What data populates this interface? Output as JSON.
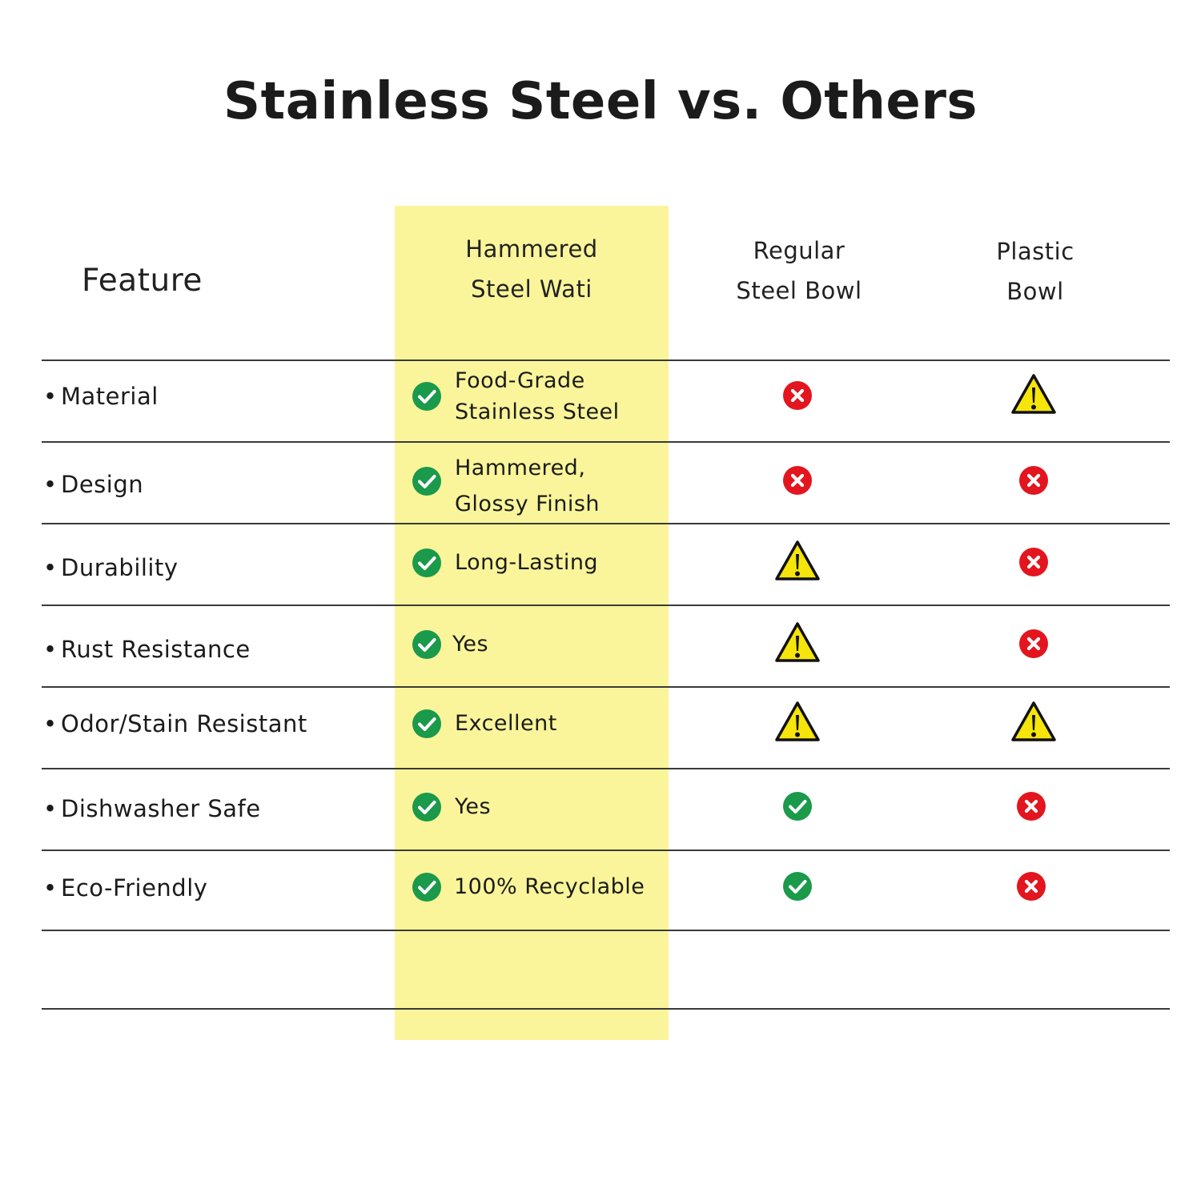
{
  "title": "Stainless Steel vs. Others",
  "columns": {
    "feature": "Feature",
    "col1": [
      "Hammered",
      "Steel Wati"
    ],
    "col2": [
      "Regular",
      "Steel Bowl"
    ],
    "col3": [
      "Plastic",
      "Bowl"
    ]
  },
  "rows": [
    {
      "feature": "Material",
      "wati": [
        "Food-Grade",
        "Stainless Steel"
      ],
      "wati_icon": "check-icon",
      "regular_icon": "cross-icon",
      "plastic_icon": "warning-icon"
    },
    {
      "feature": "Design",
      "wati": [
        "Hammered,",
        "Glossy Finish"
      ],
      "wati_icon": "check-icon",
      "regular_icon": "cross-icon",
      "plastic_icon": "cross-icon"
    },
    {
      "feature": "Durability",
      "wati": [
        "Long-Lasting"
      ],
      "wati_icon": "check-icon",
      "regular_icon": "warning-icon",
      "plastic_icon": "cross-icon"
    },
    {
      "feature": "Rust Resistance",
      "wati": [
        "Yes"
      ],
      "wati_icon": "check-icon",
      "regular_icon": "warning-icon",
      "plastic_icon": "cross-icon"
    },
    {
      "feature": "Odor/Stain Resistant",
      "wati": [
        "Excellent"
      ],
      "wati_icon": "check-icon",
      "regular_icon": "warning-icon",
      "plastic_icon": "warning-icon"
    },
    {
      "feature": "Dishwasher Safe",
      "wati": [
        "Yes"
      ],
      "wati_icon": "check-icon",
      "regular_icon": "check-icon",
      "plastic_icon": "cross-icon"
    },
    {
      "feature": "Eco-Friendly",
      "wati": [
        "100% Recyclable"
      ],
      "wati_icon": "check-icon",
      "regular_icon": "check-icon",
      "plastic_icon": "cross-icon"
    }
  ],
  "colors": {
    "highlight": "#faf59a",
    "check": "#1a9a4a",
    "cross": "#e3151e",
    "warning": "#f5e50a"
  }
}
